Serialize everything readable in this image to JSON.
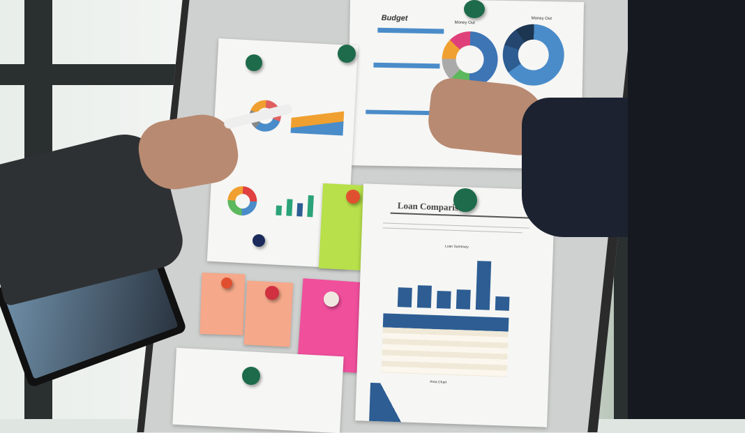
{
  "budget_sheet": {
    "title": "Budget",
    "chart1_label": "Money Out",
    "chart2_label": "Money Out"
  },
  "loan_sheet": {
    "title": "Loan Comparison",
    "summary_label": "Loan Summary",
    "area_label": "Area Chart"
  },
  "colors": {
    "chart_blue": "#2d5d93",
    "light_blue": "#4a8cc9",
    "pin_green": "#1d6b4a",
    "note_green": "#b7e04a",
    "note_pink": "#f04f9c",
    "note_peach": "#f5a88a",
    "sleeve": "#2e3134"
  }
}
